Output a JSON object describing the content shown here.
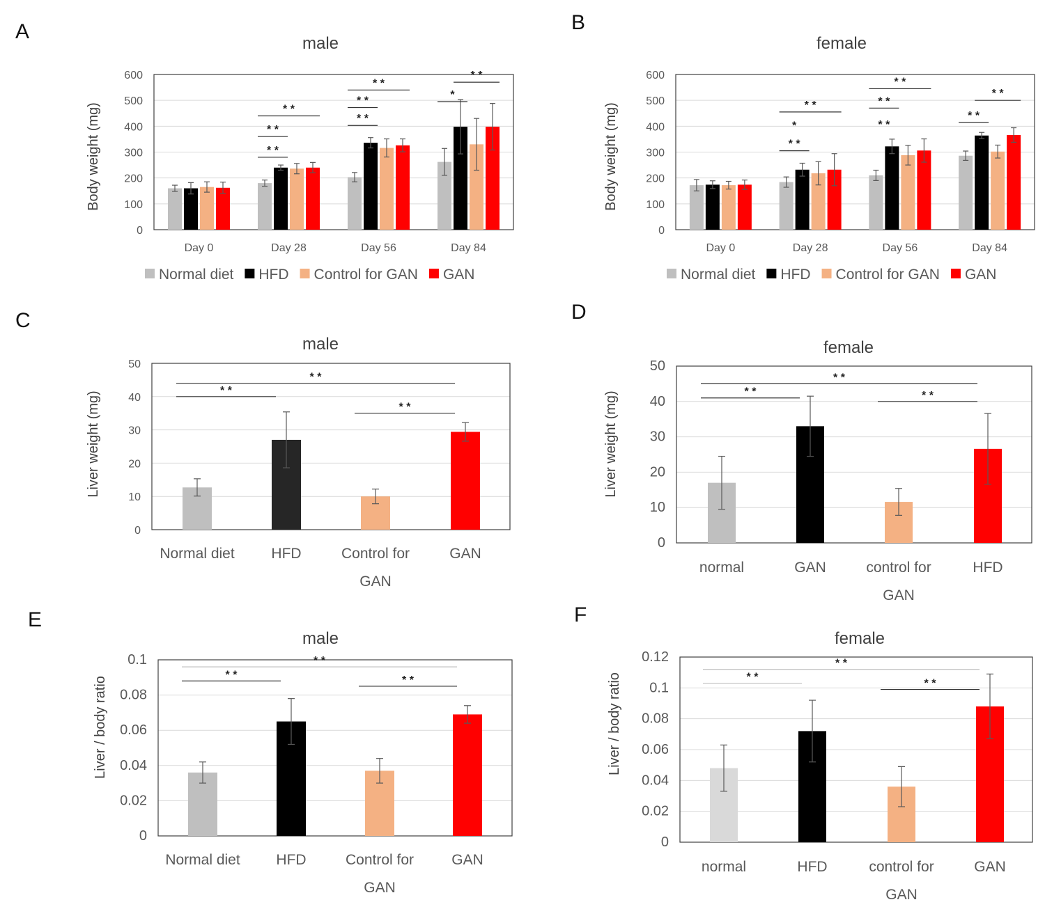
{
  "chart_data": [
    {
      "id": "A",
      "type": "bar",
      "title": "male",
      "ylabel": "Body weight (mg)",
      "ylim": [
        0,
        600
      ],
      "yticks": [
        0,
        100,
        200,
        300,
        400,
        500,
        600
      ],
      "categories": [
        "Day 0",
        "Day 28",
        "Day 56",
        "Day 84"
      ],
      "series": [
        {
          "name": "Normal diet",
          "color": "#bfbfbf",
          "values": [
            160,
            180,
            203,
            262
          ],
          "errors": [
            12,
            12,
            18,
            52
          ]
        },
        {
          "name": "HFD",
          "color": "#000000",
          "values": [
            160,
            240,
            336,
            398
          ],
          "errors": [
            22,
            10,
            20,
            105
          ]
        },
        {
          "name": "Control for GAN",
          "color": "#f4b183",
          "values": [
            165,
            236,
            316,
            330
          ],
          "errors": [
            20,
            20,
            35,
            100
          ]
        },
        {
          "name": "GAN",
          "color": "#ff0000",
          "values": [
            162,
            240,
            326,
            398
          ],
          "errors": [
            22,
            20,
            25,
            90
          ]
        }
      ],
      "annotations": [
        {
          "text": "* *",
          "g1": 1,
          "s1": 0,
          "g2": 1,
          "s2": 1,
          "y": 280
        },
        {
          "text": "* *",
          "g1": 1,
          "s1": 0,
          "g2": 1,
          "s2": 1,
          "y": 360
        },
        {
          "text": "* *",
          "g1": 1,
          "s1": 0,
          "g2": 1,
          "s2": 3,
          "y": 440
        },
        {
          "text": "* *",
          "g1": 2,
          "s1": 0,
          "g2": 2,
          "s2": 1,
          "y": 403
        },
        {
          "text": "* *",
          "g1": 2,
          "s1": 0,
          "g2": 2,
          "s2": 1,
          "y": 472
        },
        {
          "text": "* *",
          "g1": 2,
          "s1": 0,
          "g2": 2,
          "s2": 3,
          "y": 540
        },
        {
          "text": "*",
          "g1": 3,
          "s1": 0,
          "g2": 3,
          "s2": 1,
          "y": 495
        },
        {
          "text": "* *",
          "g1": 3,
          "s1": 1,
          "g2": 3,
          "s2": 3,
          "y": 570
        }
      ],
      "legend": [
        "Normal diet",
        "HFD",
        "Control for GAN",
        "GAN"
      ]
    },
    {
      "id": "B",
      "type": "bar",
      "title": "female",
      "ylabel": "Body weight (mg)",
      "ylim": [
        0,
        600
      ],
      "yticks": [
        0,
        100,
        200,
        300,
        400,
        500,
        600
      ],
      "categories": [
        "Day 0",
        "Day 28",
        "Day 56",
        "Day 84"
      ],
      "series": [
        {
          "name": "Normal diet",
          "color": "#bfbfbf",
          "values": [
            172,
            184,
            210,
            286
          ],
          "errors": [
            22,
            20,
            20,
            18
          ]
        },
        {
          "name": "HFD",
          "color": "#000000",
          "values": [
            174,
            232,
            322,
            364
          ],
          "errors": [
            15,
            25,
            28,
            12
          ]
        },
        {
          "name": "Control for GAN",
          "color": "#f4b183",
          "values": [
            172,
            218,
            288,
            302
          ],
          "errors": [
            15,
            45,
            38,
            25
          ]
        },
        {
          "name": "GAN",
          "color": "#ff0000",
          "values": [
            174,
            232,
            306,
            366
          ],
          "errors": [
            18,
            62,
            45,
            28
          ]
        }
      ],
      "annotations": [
        {
          "text": "* *",
          "g1": 1,
          "s1": 0,
          "g2": 1,
          "s2": 1,
          "y": 305
        },
        {
          "text": "*",
          "g1": 1,
          "s1": 0,
          "g2": 1,
          "s2": 1,
          "y": 375,
          "noline": true
        },
        {
          "text": "* *",
          "g1": 1,
          "s1": 0,
          "g2": 1,
          "s2": 3,
          "y": 455
        },
        {
          "text": "* *",
          "g1": 2,
          "s1": 0,
          "g2": 2,
          "s2": 1,
          "y": 380,
          "noline": true
        },
        {
          "text": "* *",
          "g1": 2,
          "s1": 0,
          "g2": 2,
          "s2": 1,
          "y": 470
        },
        {
          "text": "* *",
          "g1": 2,
          "s1": 0,
          "g2": 2,
          "s2": 3,
          "y": 545
        },
        {
          "text": "* *",
          "g1": 3,
          "s1": 0,
          "g2": 3,
          "s2": 1,
          "y": 415
        },
        {
          "text": "* *",
          "g1": 3,
          "s1": 1,
          "g2": 3,
          "s2": 3,
          "y": 500
        }
      ],
      "legend": [
        "Normal diet",
        "HFD",
        "Control for GAN",
        "GAN"
      ]
    },
    {
      "id": "C",
      "type": "bar",
      "title": "male",
      "ylabel": "Liver weight (mg)",
      "ylim": [
        0,
        50
      ],
      "yticks": [
        0,
        10,
        20,
        30,
        40,
        50
      ],
      "categories": [
        "Normal diet",
        "HFD",
        "Control for GAN",
        "GAN"
      ],
      "colors": [
        "#bfbfbf",
        "#262626",
        "#f4b183",
        "#ff0000"
      ],
      "values": [
        12.7,
        27.0,
        10.0,
        29.4
      ],
      "errors": [
        2.6,
        8.4,
        2.2,
        2.8
      ],
      "annotations": [
        {
          "text": "* *",
          "from": 0,
          "to": 1,
          "y": 40
        },
        {
          "text": "* *",
          "from": 0,
          "to": 3,
          "y": 44
        },
        {
          "text": "* *",
          "from": 2,
          "to": 3,
          "y": 35
        }
      ]
    },
    {
      "id": "D",
      "type": "bar",
      "title": "female",
      "ylabel": "Liver weight (mg)",
      "ylim": [
        0,
        50
      ],
      "yticks": [
        0,
        10,
        20,
        30,
        40,
        50
      ],
      "categories": [
        "normal",
        "GAN",
        "control for GAN",
        "HFD"
      ],
      "colors": [
        "#bfbfbf",
        "#000000",
        "#f4b183",
        "#ff0000"
      ],
      "values": [
        17.0,
        33.0,
        11.6,
        26.6
      ],
      "errors": [
        7.5,
        8.5,
        3.8,
        10.0
      ],
      "annotations": [
        {
          "text": "* *",
          "from": 0,
          "to": 1,
          "y": 41
        },
        {
          "text": "* *",
          "from": 0,
          "to": 3,
          "y": 45
        },
        {
          "text": "* *",
          "from": 2,
          "to": 3,
          "y": 40
        }
      ]
    },
    {
      "id": "E",
      "type": "bar",
      "title": "male",
      "ylabel": "Liver / body ratio",
      "ylim": [
        0,
        0.1
      ],
      "yticks": [
        "0",
        "0.02",
        "0.04",
        "0.06",
        "0.08",
        "0.1"
      ],
      "categories": [
        "Normal diet",
        "HFD",
        "Control for GAN",
        "GAN"
      ],
      "colors": [
        "#bfbfbf",
        "#000000",
        "#f4b183",
        "#ff0000"
      ],
      "values": [
        0.036,
        0.065,
        0.037,
        0.069
      ],
      "errors": [
        0.006,
        0.013,
        0.007,
        0.005
      ],
      "annotations": [
        {
          "text": "* *",
          "from": 0,
          "to": 1,
          "y": 0.088
        },
        {
          "text": "* *",
          "from": 0,
          "to": 3,
          "y": 0.096,
          "dashed": true
        },
        {
          "text": "* *",
          "from": 2,
          "to": 3,
          "y": 0.085
        }
      ]
    },
    {
      "id": "F",
      "type": "bar",
      "title": "female",
      "ylabel": "Liver / body ratio",
      "ylim": [
        0,
        0.12
      ],
      "yticks": [
        "0",
        "0.02",
        "0.04",
        "0.06",
        "0.08",
        "0.1",
        "0.12"
      ],
      "categories": [
        "normal",
        "HFD",
        "control for GAN",
        "GAN"
      ],
      "colors": [
        "#d9d9d9",
        "#000000",
        "#f4b183",
        "#ff0000"
      ],
      "values": [
        0.048,
        0.072,
        0.036,
        0.088
      ],
      "errors": [
        0.015,
        0.02,
        0.013,
        0.021
      ],
      "annotations": [
        {
          "text": "* *",
          "from": 0,
          "to": 1,
          "y": 0.103,
          "dashed": true
        },
        {
          "text": "* *",
          "from": 0,
          "to": 3,
          "y": 0.112,
          "dashed": true
        },
        {
          "text": "* *",
          "from": 2,
          "to": 3,
          "y": 0.099
        }
      ]
    }
  ]
}
